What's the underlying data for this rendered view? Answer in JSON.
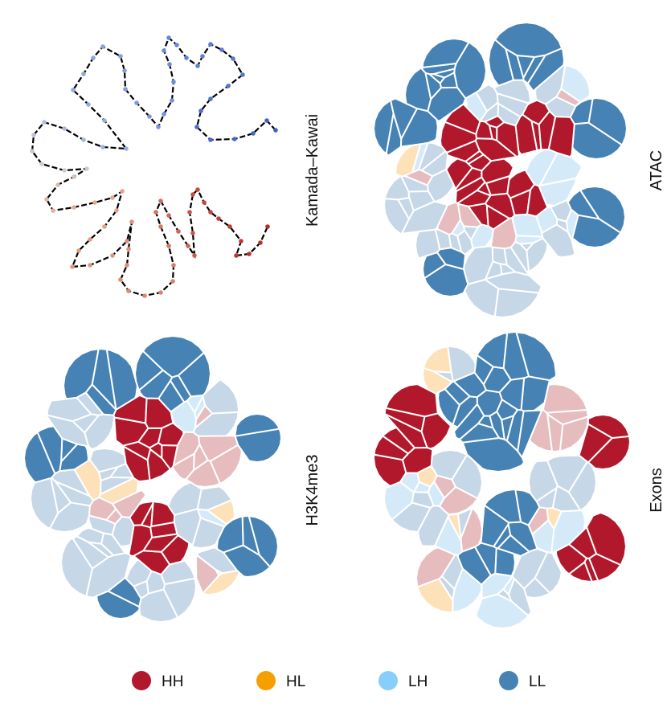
{
  "panels": [
    {
      "id": "graph",
      "label": "Kamada–Kawai",
      "kind": "graph"
    },
    {
      "id": "atac",
      "label": "ATAC",
      "kind": "map"
    },
    {
      "id": "h3k4me3",
      "label": "H3K4me3",
      "kind": "map"
    },
    {
      "id": "exons",
      "label": "Exons",
      "kind": "map"
    }
  ],
  "legend": [
    {
      "key": "HH",
      "label": "HH",
      "color": "#b2182b"
    },
    {
      "key": "HL",
      "label": "HL",
      "color": "#f5a000"
    },
    {
      "key": "LH",
      "label": "LH",
      "color": "#87cefa"
    },
    {
      "key": "LL",
      "label": "LL",
      "color": "#4682b4"
    }
  ],
  "palette": {
    "HH": "#b2182b",
    "HL": "#f5a000",
    "LH": "#87cefa",
    "LL": "#4682b4",
    "light_HH": "#e6bcbf",
    "light_HL": "#fde1b8",
    "light_LH": "#d5eaf9",
    "light_LL": "#c6d7e7",
    "edge": "#000000"
  }
}
